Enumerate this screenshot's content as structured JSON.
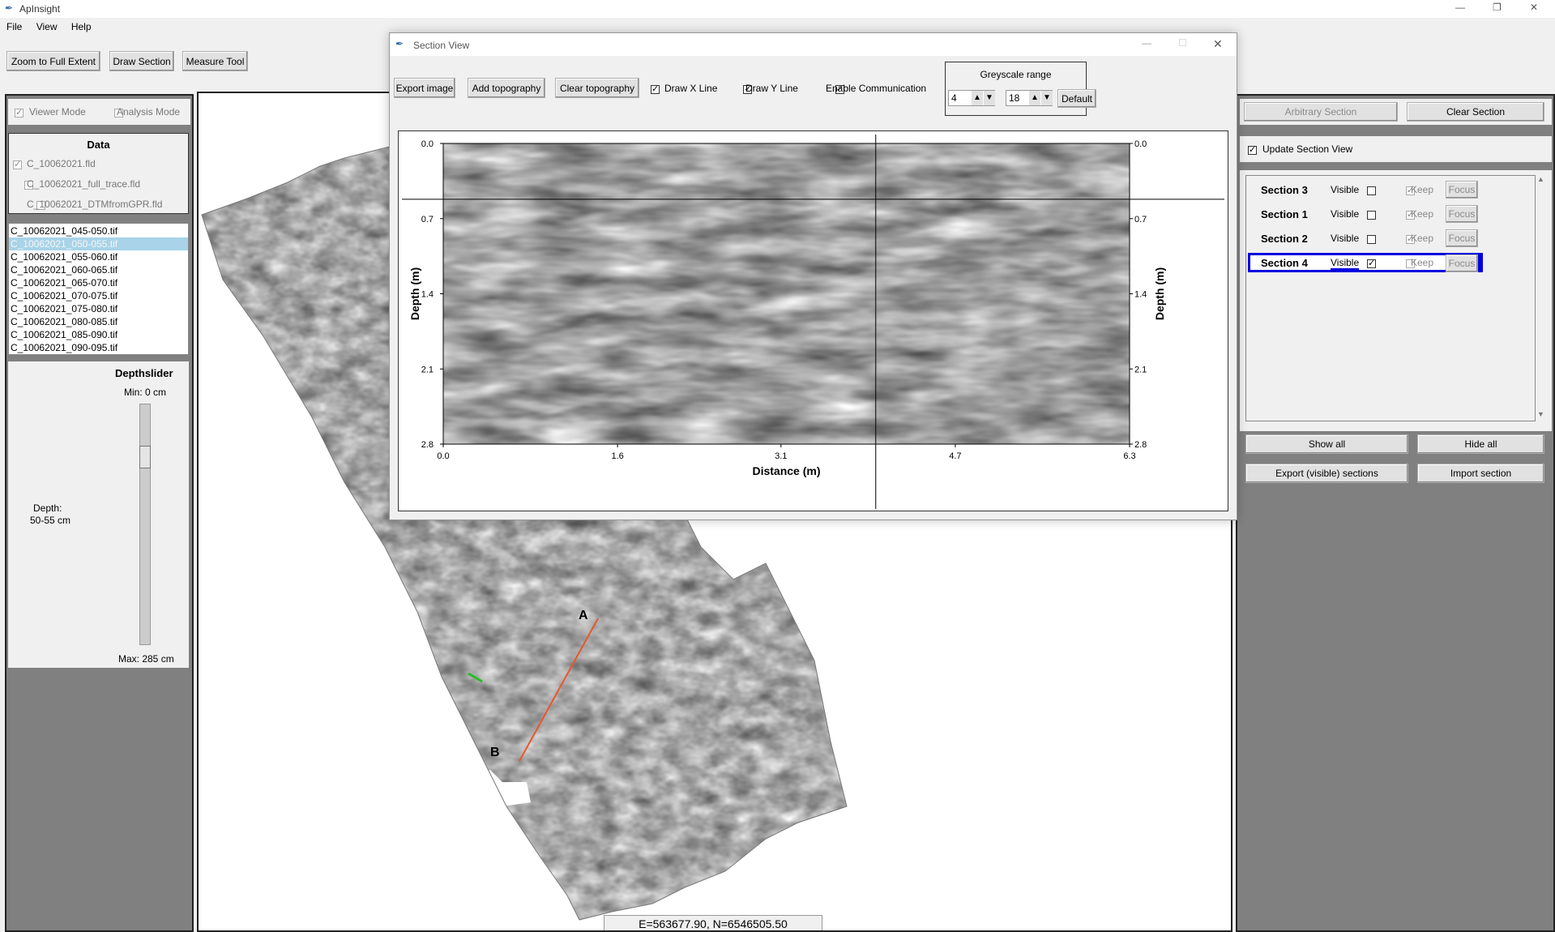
{
  "app": {
    "title": "ApInsight",
    "controls": {
      "minimize": "—",
      "maximize": "❐",
      "close": "✕"
    }
  },
  "menu": [
    "File",
    "View",
    "Help"
  ],
  "toolbar": {
    "zoom": "Zoom to Full Extent",
    "draw_section": "Draw Section",
    "measure": "Measure Tool"
  },
  "left": {
    "viewer_mode": "Viewer Mode",
    "analysis_mode": "Analysis Mode",
    "data_title": "Data",
    "data_items": [
      {
        "label": "C_10062021.fld",
        "checked": true
      },
      {
        "label": "C_10062021_full_trace.fld",
        "checked": false
      },
      {
        "label": "C_10062021_DTMfromGPR.fld",
        "checked": false
      }
    ],
    "files": [
      "C_10062021_045-050.tif",
      "C_10062021_050-055.tif",
      "C_10062021_055-060.tif",
      "C_10062021_060-065.tif",
      "C_10062021_065-070.tif",
      "C_10062021_070-075.tif",
      "C_10062021_075-080.tif",
      "C_10062021_080-085.tif",
      "C_10062021_085-090.tif",
      "C_10062021_090-095.tif"
    ],
    "selected_file_index": 1,
    "depth_title": "Depthslider",
    "min": "Min: 0 cm",
    "max": "Max: 285 cm",
    "depth_label": "Depth:",
    "depth_value": "50-55 cm",
    "slider_level": 0.19
  },
  "map": {
    "label_a": "A",
    "label_b": "B",
    "coords": "E=563677.90, N=6546505.50"
  },
  "section_view": {
    "title": "Section View",
    "export_image": "Export image",
    "add_topo": "Add topography",
    "clear_topo": "Clear topography",
    "draw_x": "Draw X Line",
    "draw_y": "Draw Y Line",
    "enable_comm": "Enable Communication",
    "greyscale_title": "Greyscale range",
    "grey_min": "4",
    "grey_max": "18",
    "default": "Default"
  },
  "chart_data": {
    "type": "heatmap",
    "xlabel": "Distance (m)",
    "ylabel": "Depth (m)",
    "ylabel_right": "Depth (m)",
    "x_ticks": [
      "0.0",
      "1.6",
      "3.1",
      "4.7",
      "6.3"
    ],
    "y_ticks": [
      "0.0",
      "0.7",
      "1.4",
      "2.1",
      "2.8"
    ],
    "xlim": [
      0.0,
      6.3
    ],
    "ylim": [
      0.0,
      2.8
    ],
    "cursor_x": 3.97,
    "cursor_y": 0.52
  },
  "right": {
    "arbitrary": "Arbitrary Section",
    "clear_section": "Clear Section",
    "update_view": "Update Section View",
    "sections": [
      {
        "name": "Section 3",
        "visible": false,
        "keep": true,
        "active": false
      },
      {
        "name": "Section 1",
        "visible": false,
        "keep": true,
        "active": false
      },
      {
        "name": "Section 2",
        "visible": false,
        "keep": true,
        "active": false
      },
      {
        "name": "Section 4",
        "visible": true,
        "keep": false,
        "active": true
      }
    ],
    "visible_label": "Visible",
    "keep_label": "Keep",
    "focus_label": "Focus",
    "show_all": "Show all",
    "hide_all": "Hide all",
    "export_sections": "Export (visible) sections",
    "import_section": "Import section"
  }
}
